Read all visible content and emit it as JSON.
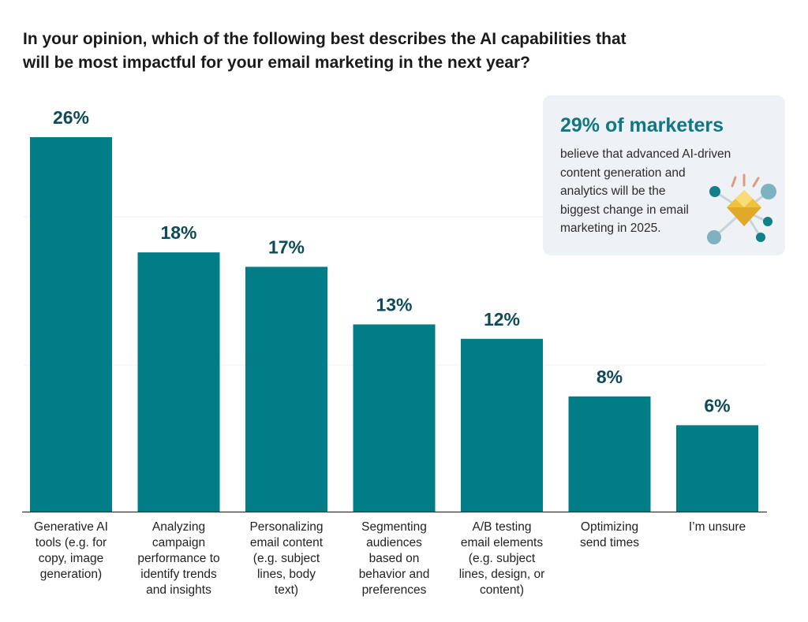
{
  "title_lines": [
    "In your opinion, which of the following best describes the AI capabilities that",
    "will be most impactful for your email marketing in the next year?"
  ],
  "callout": {
    "headline": "29% of marketers",
    "body_lines": [
      "believe that advanced AI-driven",
      "content generation and",
      "analytics will be the",
      "biggest change in email",
      "marketing in 2025."
    ],
    "icon": "ai-network-diamond-icon"
  },
  "colors": {
    "bar": "#007d87",
    "value_label": "#0e4a57",
    "callout_bg": "#eef2f6",
    "accent": "#0f7782"
  },
  "chart_data": {
    "type": "bar",
    "title": "In your opinion, which of the following best describes the AI capabilities that will be most impactful for your email marketing in the next year?",
    "categories": [
      [
        "Generative AI",
        "tools (e.g. for",
        "copy, image",
        "generation)"
      ],
      [
        "Analyzing",
        "campaign",
        "performance to",
        "identify trends",
        "and insights"
      ],
      [
        "Personalizing",
        "email content",
        "(e.g. subject",
        "lines, body",
        "text)"
      ],
      [
        "Segmenting",
        "audiences",
        "based on",
        "behavior and",
        "preferences"
      ],
      [
        "A/B testing",
        "email elements",
        "(e.g. subject",
        "lines, design, or",
        "content)"
      ],
      [
        "Optimizing",
        "send times"
      ],
      [
        "I’m unsure"
      ]
    ],
    "values": [
      26,
      18,
      17,
      13,
      12,
      8,
      6
    ],
    "value_labels": [
      "26%",
      "18%",
      "17%",
      "13%",
      "12%",
      "8%",
      "6%"
    ],
    "unit": "%",
    "ylim": [
      0,
      26
    ],
    "xlabel": "",
    "ylabel": "",
    "grid": true
  }
}
